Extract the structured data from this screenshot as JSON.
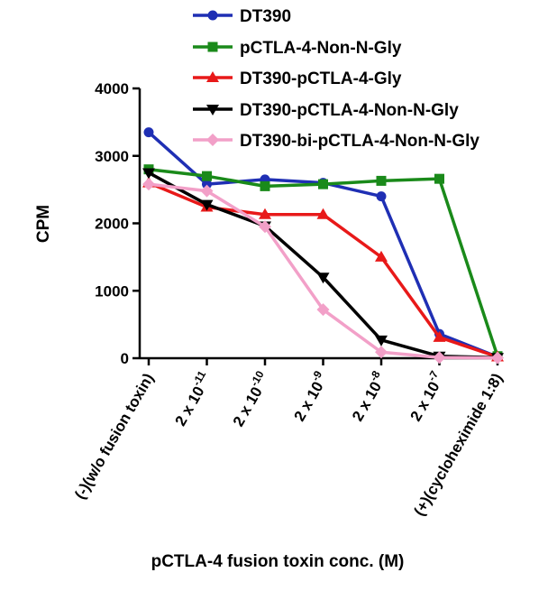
{
  "chart_data": {
    "type": "line",
    "title": "",
    "xlabel": "pCTLA-4 fusion toxin conc. (M)",
    "ylabel": "CPM",
    "ylim": [
      0,
      4000
    ],
    "yticks": [
      0,
      1000,
      2000,
      3000,
      4000
    ],
    "grid": false,
    "legend_position": "top",
    "categories": [
      {
        "text": "(-)(w/o fusion toxin)"
      },
      {
        "text": "2 x 10",
        "sup": "-11"
      },
      {
        "text": "2 x 10",
        "sup": "-10"
      },
      {
        "text": "2 x 10",
        "sup": "-9"
      },
      {
        "text": "2 x 10",
        "sup": "-8"
      },
      {
        "text": "2 x 10",
        "sup": "-7"
      },
      {
        "text": "(+)(cycloheximide 1:8)"
      }
    ],
    "series": [
      {
        "name": "DT390",
        "color": "#1f2fb4",
        "marker": "circle",
        "values": [
          3350,
          2580,
          2650,
          2600,
          2400,
          360,
          20
        ]
      },
      {
        "name": "pCTLA-4-Non-N-Gly",
        "color": "#1a8a1a",
        "marker": "square",
        "values": [
          2800,
          2700,
          2550,
          2580,
          2630,
          2660,
          30
        ]
      },
      {
        "name": "DT390-pCTLA-4-Gly",
        "color": "#e81919",
        "marker": "triangle-up",
        "values": [
          2600,
          2240,
          2130,
          2130,
          1500,
          310,
          20
        ]
      },
      {
        "name": "DT390-pCTLA-4-Non-N-Gly",
        "color": "#000000",
        "marker": "triangle-down",
        "values": [
          2750,
          2280,
          1960,
          1200,
          270,
          30,
          10
        ]
      },
      {
        "name": "DT390-bi-pCTLA-4-Non-N-Gly",
        "color": "#f2a0c8",
        "marker": "diamond",
        "values": [
          2580,
          2480,
          1950,
          720,
          90,
          10,
          5
        ]
      }
    ]
  }
}
